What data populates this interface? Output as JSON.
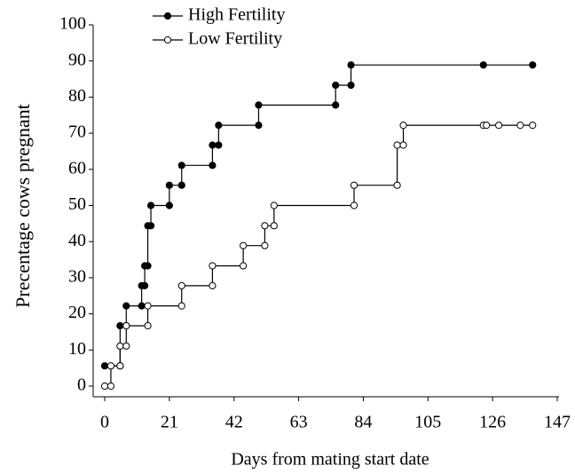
{
  "chart_data": {
    "type": "step-line",
    "x_label": "Days from mating start date",
    "y_label": "Precentage cows pregnant",
    "xlim": [
      0,
      147
    ],
    "xticks": [
      0,
      21,
      42,
      63,
      84,
      105,
      126,
      147
    ],
    "ylim": [
      0,
      100
    ],
    "yticks": [
      0,
      10,
      20,
      30,
      40,
      50,
      60,
      70,
      80,
      90,
      100
    ],
    "grid": false,
    "legend": "top-left",
    "series": [
      {
        "name": "High Fertility",
        "color": "#000000",
        "marker": "filled",
        "x": [
          0,
          5,
          5,
          7,
          7,
          12,
          12,
          13,
          13,
          14,
          14,
          15,
          15,
          21,
          21,
          25,
          25,
          35,
          35,
          37,
          37,
          50,
          50,
          75,
          75,
          80,
          80,
          123,
          139
        ],
        "values": [
          5.6,
          5.6,
          16.7,
          16.7,
          22.2,
          22.2,
          27.8,
          27.8,
          33.3,
          33.3,
          44.4,
          44.4,
          50,
          50,
          55.6,
          55.6,
          61.1,
          61.1,
          66.7,
          66.7,
          72.2,
          72.2,
          77.8,
          77.8,
          83.3,
          83.3,
          88.9,
          88.9,
          88.9
        ]
      },
      {
        "name": "Low Fertility",
        "color": "#000000",
        "marker": "open",
        "x": [
          0,
          2,
          2,
          5,
          5,
          7,
          7,
          14,
          14,
          25,
          25,
          35,
          35,
          45,
          45,
          52,
          52,
          55,
          55,
          81,
          81,
          95,
          95,
          97,
          97,
          123,
          124,
          128,
          135,
          139
        ],
        "values": [
          0,
          0,
          5.6,
          5.6,
          11.1,
          11.1,
          16.7,
          16.7,
          22.2,
          22.2,
          27.8,
          27.8,
          33.3,
          33.3,
          38.9,
          38.9,
          44.4,
          44.4,
          50,
          50,
          55.6,
          55.6,
          66.7,
          66.7,
          72.2,
          72.2,
          72.2,
          72.2,
          72.2,
          72.2
        ]
      }
    ]
  }
}
